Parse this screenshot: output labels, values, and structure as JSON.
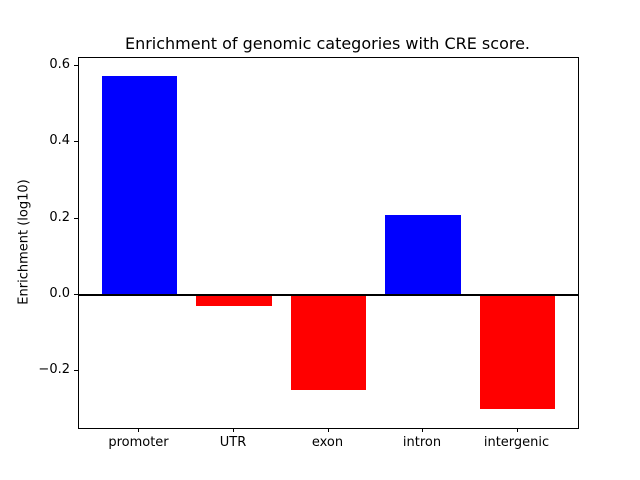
{
  "chart_data": {
    "type": "bar",
    "title": "Enrichment of genomic categories with CRE score.",
    "xlabel": "",
    "ylabel": "Enrichment (log10)",
    "categories": [
      "promoter",
      "UTR",
      "exon",
      "intron",
      "intergenic"
    ],
    "values": [
      0.575,
      -0.03,
      -0.25,
      0.21,
      -0.3
    ],
    "bar_colors": [
      "#0000ff",
      "#ff0000",
      "#ff0000",
      "#0000ff",
      "#ff0000"
    ],
    "yticks": [
      {
        "value": 0.6,
        "label": "0.6"
      },
      {
        "value": 0.4,
        "label": "0.4"
      },
      {
        "value": 0.2,
        "label": "0.2"
      },
      {
        "value": 0.0,
        "label": "0.0"
      },
      {
        "value": -0.2,
        "label": "−0.2"
      }
    ],
    "ylim": [
      -0.349,
      0.621
    ],
    "xlim": [
      -0.64,
      4.64
    ],
    "bar_width": 0.8,
    "grid": "off",
    "legend": "none",
    "zero_baseline": {
      "value": 0.0,
      "color": "#000000"
    },
    "background_color": "#ffffff",
    "frame_color": "#000000"
  }
}
